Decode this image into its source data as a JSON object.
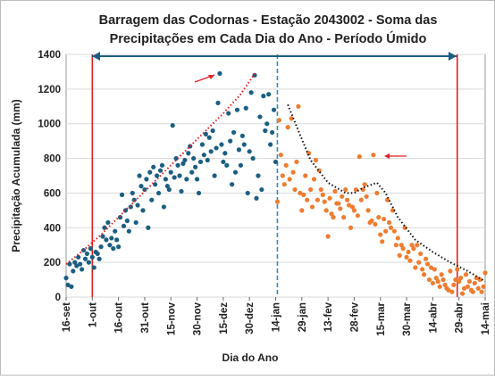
{
  "chart_data": {
    "type": "scatter",
    "title": [
      "Barragem das Codornas -  Estação 2043002 - Soma das",
      "Precipitações em Cada Dia do Ano - Período Úmido"
    ],
    "x_label": "Dia do Ano",
    "y_label": "Precipitação Acumulada (mm)",
    "xlim": [
      0,
      240
    ],
    "ylim": [
      0,
      1400
    ],
    "grid": true,
    "yticks": [
      0,
      200,
      400,
      600,
      800,
      1000,
      1200,
      1400
    ],
    "xticks": [
      {
        "value": 0,
        "label": "16-set"
      },
      {
        "value": 15,
        "label": "1-out"
      },
      {
        "value": 30,
        "label": "16-out"
      },
      {
        "value": 45,
        "label": "31-out"
      },
      {
        "value": 60,
        "label": "15-nov"
      },
      {
        "value": 75,
        "label": "30-nov"
      },
      {
        "value": 90,
        "label": "15-dez"
      },
      {
        "value": 105,
        "label": "30-dez"
      },
      {
        "value": 120,
        "label": "14-jan"
      },
      {
        "value": 135,
        "label": "29-jan"
      },
      {
        "value": 150,
        "label": "13-fev"
      },
      {
        "value": 165,
        "label": "28-fev"
      },
      {
        "value": 180,
        "label": "15-mar"
      },
      {
        "value": 195,
        "label": "30-mar"
      },
      {
        "value": 210,
        "label": "14-abr"
      },
      {
        "value": 225,
        "label": "29-abr"
      },
      {
        "value": 240,
        "label": "14-mai"
      }
    ],
    "series": [
      {
        "color": "#1b5e82",
        "x": [
          0,
          1,
          2,
          3,
          4,
          5,
          6,
          7,
          8,
          9,
          10,
          11,
          12,
          13,
          14,
          15,
          16,
          17,
          18,
          19,
          20,
          21,
          22,
          23,
          24,
          25,
          26,
          27,
          28,
          29,
          30,
          31,
          32,
          33,
          34,
          35,
          36,
          37,
          38,
          39,
          40,
          41,
          42,
          43,
          44,
          45,
          46,
          47,
          48,
          49,
          50,
          51,
          52,
          53,
          54,
          55,
          56,
          57,
          58,
          59,
          60,
          61,
          62,
          63,
          64,
          65,
          66,
          67,
          68,
          69,
          70,
          71,
          72,
          73,
          74,
          75,
          76,
          77,
          78,
          79,
          80,
          81,
          82,
          83,
          84,
          85,
          86,
          87,
          88,
          89,
          90,
          91,
          92,
          93,
          94,
          95,
          96,
          97,
          98,
          99,
          100,
          101,
          102,
          103,
          104,
          105,
          106,
          107,
          108,
          109,
          110,
          111,
          112,
          113,
          114,
          115,
          116,
          117,
          118,
          119,
          120
        ],
        "values": [
          110,
          70,
          190,
          60,
          150,
          200,
          180,
          230,
          190,
          160,
          270,
          220,
          250,
          200,
          280,
          230,
          170,
          260,
          250,
          220,
          290,
          350,
          400,
          330,
          430,
          300,
          340,
          280,
          380,
          330,
          290,
          460,
          590,
          410,
          500,
          440,
          380,
          520,
          600,
          560,
          430,
          530,
          700,
          640,
          500,
          620,
          680,
          400,
          720,
          560,
          750,
          650,
          700,
          600,
          730,
          760,
          520,
          680,
          640,
          620,
          720,
          990,
          690,
          800,
          760,
          700,
          610,
          770,
          790,
          680,
          830,
          870,
          720,
          800,
          750,
          680,
          600,
          780,
          880,
          820,
          940,
          790,
          920,
          840,
          960,
          700,
          860,
          1120,
          1290,
          880,
          780,
          830,
          760,
          1060,
          900,
          650,
          950,
          720,
          1080,
          850,
          760,
          930,
          880,
          1090,
          600,
          840,
          1180,
          800,
          1280,
          570,
          700,
          1040,
          620,
          1160,
          960,
          1000,
          1170,
          880,
          950,
          1080,
          780
        ]
      },
      {
        "color": "#ed7d31",
        "x": [
          121,
          122,
          123,
          124,
          125,
          126,
          127,
          128,
          129,
          130,
          131,
          132,
          133,
          134,
          135,
          136,
          137,
          138,
          139,
          140,
          141,
          142,
          143,
          144,
          145,
          146,
          147,
          148,
          149,
          150,
          151,
          152,
          153,
          154,
          155,
          156,
          157,
          158,
          159,
          160,
          161,
          162,
          163,
          164,
          165,
          166,
          167,
          168,
          169,
          170,
          171,
          172,
          173,
          174,
          175,
          176,
          177,
          178,
          179,
          180,
          181,
          182,
          183,
          184,
          185,
          186,
          187,
          188,
          189,
          190,
          191,
          192,
          193,
          194,
          195,
          196,
          197,
          198,
          199,
          200,
          201,
          202,
          203,
          204,
          205,
          206,
          207,
          208,
          209,
          210,
          211,
          212,
          213,
          214,
          215,
          216,
          217,
          218,
          219,
          220,
          221,
          222,
          223,
          224,
          225,
          226,
          227,
          228,
          229,
          230,
          231,
          232,
          233,
          234,
          235,
          236,
          237,
          238,
          239,
          240
        ],
        "values": [
          550,
          1020,
          820,
          700,
          650,
          760,
          980,
          680,
          1030,
          720,
          620,
          780,
          1100,
          600,
          500,
          590,
          700,
          560,
          830,
          620,
          520,
          680,
          790,
          560,
          730,
          620,
          590,
          550,
          500,
          350,
          570,
          480,
          460,
          610,
          540,
          540,
          510,
          580,
          460,
          620,
          560,
          530,
          400,
          520,
          500,
          620,
          470,
          810,
          560,
          620,
          650,
          580,
          500,
          430,
          440,
          820,
          420,
          600,
          460,
          360,
          320,
          450,
          380,
          560,
          430,
          400,
          500,
          380,
          300,
          340,
          240,
          300,
          280,
          400,
          230,
          260,
          210,
          300,
          280,
          170,
          300,
          200,
          250,
          160,
          130,
          220,
          190,
          100,
          170,
          80,
          160,
          110,
          90,
          60,
          130,
          100,
          70,
          50,
          40,
          150,
          30,
          70,
          100,
          160,
          90,
          110,
          20,
          50,
          130,
          60,
          90,
          40,
          30,
          80,
          110,
          50,
          100,
          30,
          60,
          140
        ]
      }
    ],
    "trend_lines": [
      {
        "color": "#e02020",
        "x": [
          0,
          10,
          20,
          30,
          40,
          50,
          60,
          70,
          80,
          90,
          100,
          108
        ],
        "y": [
          190,
          270,
          360,
          460,
          560,
          660,
          760,
          860,
          960,
          1060,
          1170,
          1290
        ]
      },
      {
        "color": "#111111",
        "x": [
          127,
          133,
          140,
          150,
          160,
          165,
          170,
          178,
          183,
          190,
          200,
          210,
          220,
          230,
          240
        ],
        "y": [
          1110,
          960,
          790,
          660,
          600,
          600,
          630,
          660,
          600,
          460,
          330,
          260,
          200,
          150,
          90
        ]
      }
    ],
    "vlines": [
      {
        "x": 15,
        "color": "#e02020",
        "dash": false
      },
      {
        "x": 121,
        "color": "#2e8fb5",
        "dash": true
      },
      {
        "x": 224,
        "color": "#e02020",
        "dash": false
      }
    ]
  }
}
